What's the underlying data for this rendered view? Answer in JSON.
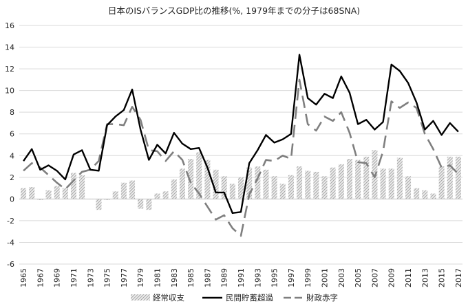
{
  "chart_data": {
    "type": "bar+line",
    "title": "日本のISバランスGDP比の推移(%, 1979年までの分子は68SNA)",
    "xlabel": "",
    "ylabel": "",
    "ylim": [
      -6,
      16
    ],
    "yticks": [
      -6,
      -4,
      -2,
      0,
      2,
      4,
      6,
      8,
      10,
      12,
      14,
      16
    ],
    "grid": true,
    "legend_position": "bottom",
    "x": [
      1965,
      1966,
      1967,
      1968,
      1969,
      1970,
      1971,
      1972,
      1973,
      1974,
      1975,
      1976,
      1977,
      1978,
      1979,
      1980,
      1981,
      1982,
      1983,
      1984,
      1985,
      1986,
      1987,
      1988,
      1989,
      1990,
      1991,
      1992,
      1993,
      1994,
      1995,
      1996,
      1997,
      1998,
      1999,
      2000,
      2001,
      2002,
      2003,
      2004,
      2005,
      2006,
      2007,
      2008,
      2009,
      2010,
      2011,
      2012,
      2013,
      2014,
      2015,
      2016,
      2017
    ],
    "xticklabels": [
      "1965",
      "1967",
      "1969",
      "1971",
      "1973",
      "1975",
      "1977",
      "1979",
      "1981",
      "1983",
      "1985",
      "1987",
      "1989",
      "1991",
      "1993",
      "1995",
      "1997",
      "1999",
      "2001",
      "2003",
      "2005",
      "2007",
      "2009",
      "2011",
      "2013",
      "2015",
      "2017"
    ],
    "series": [
      {
        "name": "経常収支",
        "kind": "bar",
        "color": "#a6a6a6",
        "values": [
          1.0,
          1.1,
          -0.1,
          0.8,
          1.2,
          1.0,
          2.4,
          2.2,
          0.0,
          -1.0,
          -0.1,
          0.7,
          1.5,
          1.7,
          -0.9,
          -1.0,
          0.5,
          0.7,
          1.8,
          2.8,
          3.7,
          4.3,
          3.6,
          2.7,
          2.1,
          1.4,
          2.0,
          2.9,
          3.0,
          2.7,
          2.1,
          1.4,
          2.2,
          3.0,
          2.6,
          2.5,
          2.1,
          2.9,
          3.2,
          3.7,
          3.6,
          3.9,
          4.5,
          2.8,
          2.8,
          3.8,
          2.1,
          1.0,
          0.8,
          0.5,
          3.0,
          3.9,
          3.9
        ]
      },
      {
        "name": "民間貯蓄超過",
        "kind": "line",
        "color": "#000000",
        "values": [
          3.5,
          4.6,
          2.7,
          3.1,
          2.6,
          1.8,
          4.1,
          4.5,
          2.7,
          2.6,
          6.8,
          7.6,
          8.2,
          10.1,
          6.4,
          3.6,
          5.0,
          4.2,
          6.1,
          5.1,
          4.6,
          4.7,
          2.9,
          0.6,
          0.6,
          -1.3,
          -1.2,
          3.3,
          4.5,
          5.9,
          5.2,
          5.5,
          6.0,
          13.3,
          9.3,
          8.7,
          9.7,
          9.3,
          11.3,
          9.8,
          6.9,
          7.3,
          6.4,
          7.1,
          12.4,
          11.8,
          10.7,
          8.9,
          6.4,
          7.2,
          5.9,
          7.0,
          6.2
        ]
      },
      {
        "name": "財政赤字",
        "kind": "line",
        "color": "#7f7f7f",
        "dash": "18 9",
        "values": [
          2.6,
          3.3,
          2.9,
          2.2,
          1.5,
          0.9,
          1.7,
          2.5,
          2.7,
          3.5,
          6.9,
          6.9,
          6.8,
          8.5,
          7.3,
          4.5,
          4.4,
          3.5,
          4.4,
          3.6,
          1.5,
          0.5,
          -0.7,
          -1.9,
          -1.5,
          -2.7,
          -3.4,
          0.4,
          1.9,
          3.6,
          3.5,
          4.0,
          3.7,
          11.0,
          6.9,
          6.3,
          7.6,
          7.2,
          8.0,
          6.1,
          3.4,
          3.3,
          2.0,
          4.4,
          9.0,
          8.4,
          8.9,
          8.4,
          6.0,
          4.6,
          2.9,
          3.1,
          2.3
        ]
      }
    ]
  }
}
